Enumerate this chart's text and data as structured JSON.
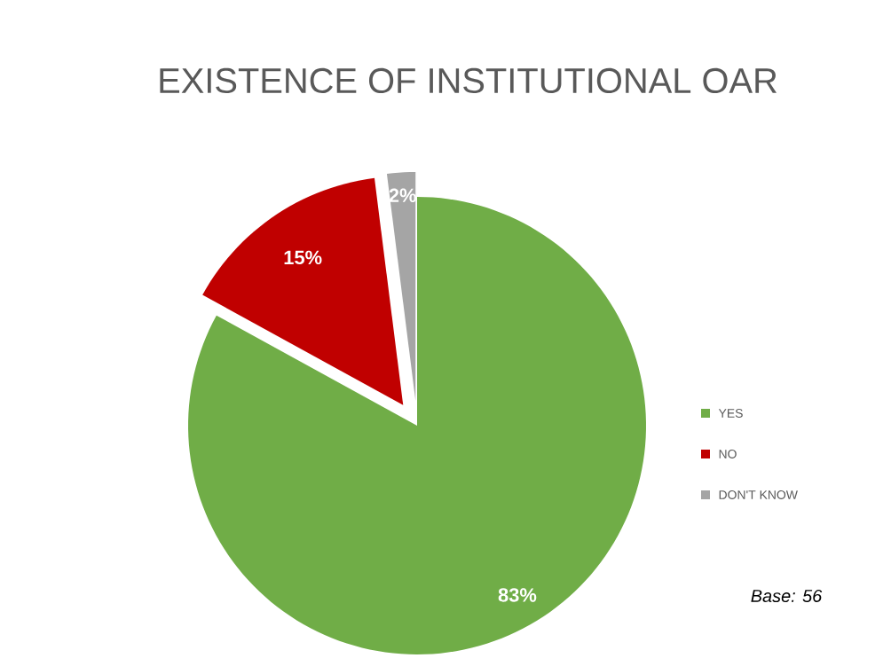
{
  "chart_data": {
    "type": "pie",
    "title": "EXISTENCE OF INSTITUTIONAL OAR",
    "categories": [
      "YES",
      "NO",
      "DON'T KNOW"
    ],
    "values": [
      83,
      15,
      2
    ],
    "colors": [
      "#70ad47",
      "#c00000",
      "#a5a5a5"
    ],
    "value_labels": [
      "83%",
      "15%",
      "2%"
    ],
    "legend": "right",
    "annotations": [
      "Base: 56"
    ]
  }
}
